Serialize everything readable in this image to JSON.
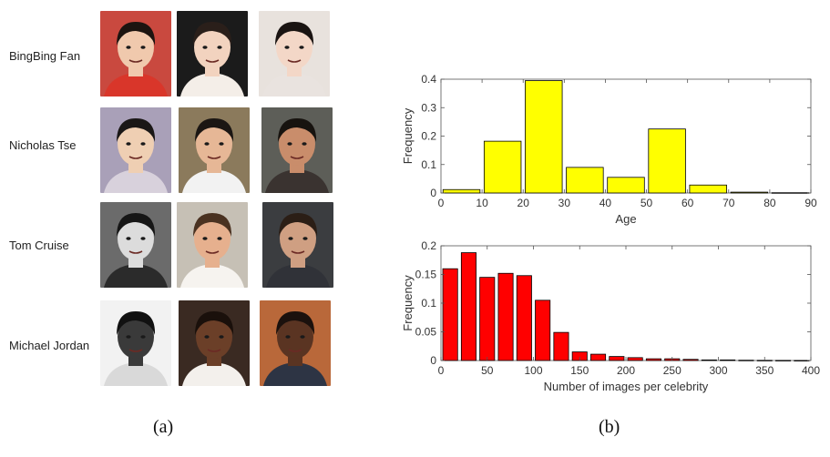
{
  "panel_a": {
    "caption": "(a)",
    "people": [
      {
        "name": "BingBing Fan",
        "photos": [
          {
            "bg": "#c9493f",
            "skin": "#f0c9ad",
            "hair": "#1c1410",
            "shirt": "#d9362a"
          },
          {
            "bg": "#1b1b1b",
            "skin": "#f2d3bf",
            "hair": "#2a1f1a",
            "shirt": "#f4eee8"
          },
          {
            "bg": "#e8e2dd",
            "skin": "#f3d7c7",
            "hair": "#1a1412",
            "shirt": "#e9e3df"
          }
        ]
      },
      {
        "name": "Nicholas Tse",
        "photos": [
          {
            "bg": "#a9a0b8",
            "skin": "#efcfb3",
            "hair": "#1a1716",
            "shirt": "#d8d1dc"
          },
          {
            "bg": "#8b7a5c",
            "skin": "#e6b796",
            "hair": "#1b1613",
            "shirt": "#f2f2f2"
          },
          {
            "bg": "#5d5e58",
            "skin": "#c98d6b",
            "hair": "#17130f",
            "shirt": "#3a3330"
          }
        ]
      },
      {
        "name": "Tom Cruise",
        "photos": [
          {
            "bg": "#6b6b6b",
            "skin": "#dcdcdc",
            "hair": "#161616",
            "shirt": "#2b2b2b"
          },
          {
            "bg": "#c6c0b5",
            "skin": "#e6b08e",
            "hair": "#4a3221",
            "shirt": "#f6f3ef"
          },
          {
            "bg": "#3b3d40",
            "skin": "#cf9f82",
            "hair": "#2b1e16",
            "shirt": "#303238"
          }
        ]
      },
      {
        "name": "Michael Jordan",
        "photos": [
          {
            "bg": "#f2f2f2",
            "skin": "#3a3a3a",
            "hair": "#111111",
            "shirt": "#d9d9d9"
          },
          {
            "bg": "#3a2a22",
            "skin": "#6b3f28",
            "hair": "#1a100b",
            "shirt": "#f3f0ec"
          },
          {
            "bg": "#b9683a",
            "skin": "#5a3422",
            "hair": "#1b110d",
            "shirt": "#2d3444"
          }
        ]
      }
    ]
  },
  "panel_b": {
    "caption": "(b)"
  },
  "chart_data": [
    {
      "type": "bar",
      "x": [
        5,
        15,
        25,
        35,
        45,
        55,
        65,
        75,
        85
      ],
      "values": [
        0.012,
        0.182,
        0.395,
        0.09,
        0.055,
        0.225,
        0.028,
        0.003,
        0.001
      ],
      "bar_width": 9,
      "xlim": [
        0,
        90
      ],
      "ylim": [
        0,
        0.4
      ],
      "xticks": [
        0,
        10,
        20,
        30,
        40,
        50,
        60,
        70,
        80,
        90
      ],
      "yticks": [
        0,
        0.1,
        0.2,
        0.3,
        0.4
      ],
      "xtick_labels": [
        "0",
        "10",
        "20",
        "30",
        "40",
        "50",
        "60",
        "70",
        "80",
        "90"
      ],
      "ytick_labels": [
        "0",
        "0.1",
        "0.2",
        "0.3",
        "0.4"
      ],
      "xlabel": "Age",
      "ylabel": "Frequency",
      "color": "#ffff00",
      "grid": false
    },
    {
      "type": "bar",
      "x": [
        10,
        30,
        50,
        70,
        90,
        110,
        130,
        150,
        170,
        190,
        210,
        230,
        250,
        270,
        290,
        310,
        330,
        350,
        370,
        390
      ],
      "values": [
        0.16,
        0.188,
        0.145,
        0.152,
        0.148,
        0.105,
        0.049,
        0.015,
        0.011,
        0.007,
        0.005,
        0.003,
        0.003,
        0.002,
        0.001,
        0.001,
        0.0005,
        0.0003,
        0.0002,
        0.0001
      ],
      "bar_width": 16,
      "xlim": [
        0,
        400
      ],
      "ylim": [
        0,
        0.2
      ],
      "xticks": [
        0,
        50,
        100,
        150,
        200,
        250,
        300,
        350,
        400
      ],
      "yticks": [
        0,
        0.05,
        0.1,
        0.15,
        0.2
      ],
      "xtick_labels": [
        "0",
        "50",
        "100",
        "150",
        "200",
        "250",
        "300",
        "350",
        "400"
      ],
      "ytick_labels": [
        "0",
        "0.05",
        "0.1",
        "0.15",
        "0.2"
      ],
      "xlabel": "Number of images per celebrity",
      "ylabel": "Frequency",
      "color": "#ff0000",
      "grid": false
    }
  ]
}
